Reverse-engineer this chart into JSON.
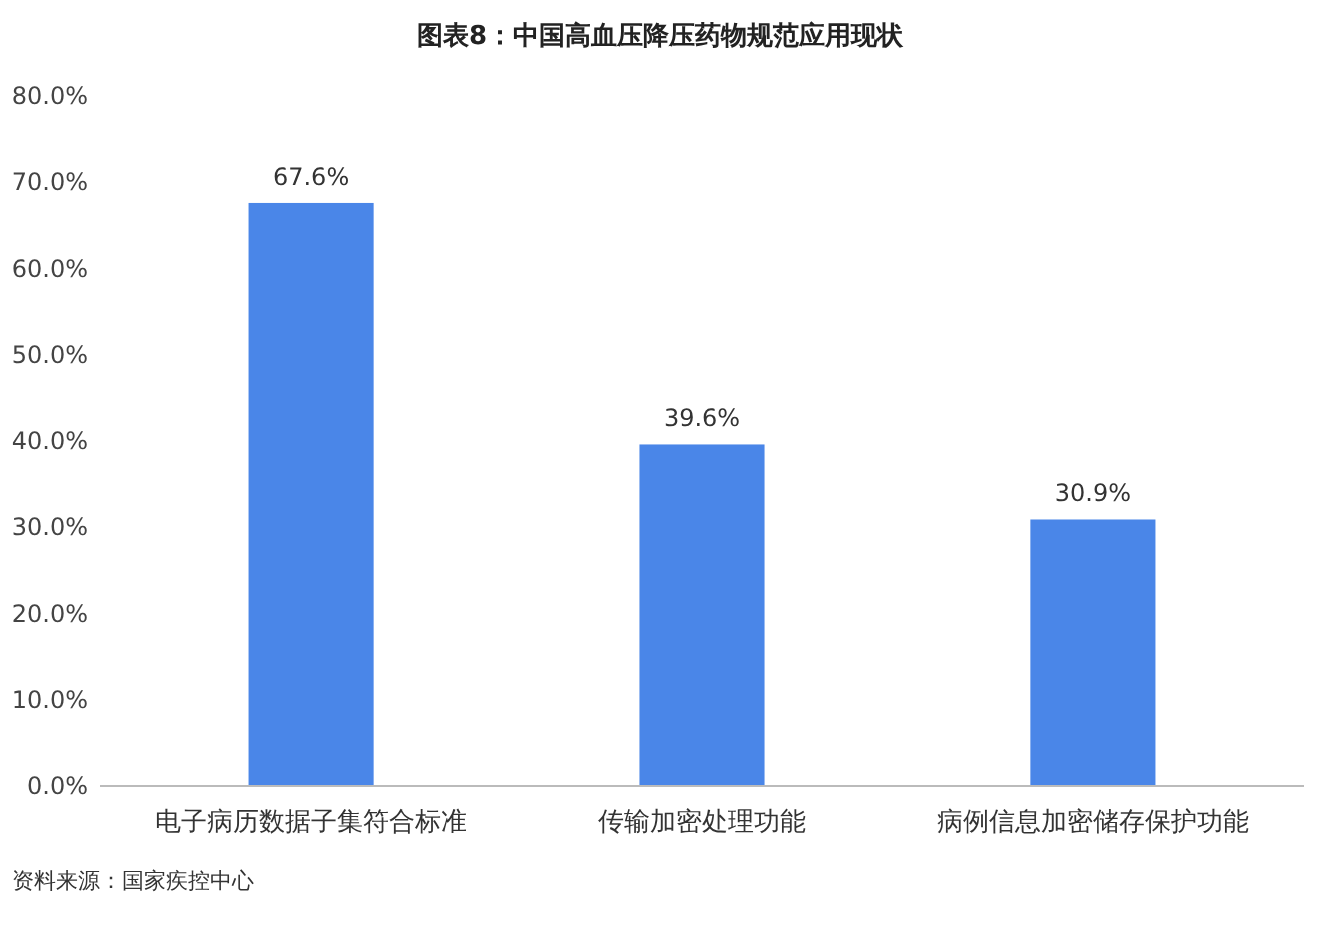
{
  "chart_data": {
    "type": "bar",
    "title": "图表8：中国高血压降压药物规范应用现状",
    "categories": [
      "电子病历数据子集符合标准",
      "传输加密处理功能",
      "病例信息加密储存保护功能"
    ],
    "values": [
      67.6,
      39.6,
      30.9
    ],
    "value_labels": [
      "67.6%",
      "39.6%",
      "30.9%"
    ],
    "color": "#4a86e8",
    "ylim": [
      0,
      80
    ],
    "yticks": [
      {
        "value": 0,
        "label": "0.0%"
      },
      {
        "value": 10,
        "label": "10.0%"
      },
      {
        "value": 20,
        "label": "20.0%"
      },
      {
        "value": 30,
        "label": "30.0%"
      },
      {
        "value": 40,
        "label": "40.0%"
      },
      {
        "value": 50,
        "label": "50.0%"
      },
      {
        "value": 60,
        "label": "60.0%"
      },
      {
        "value": 70,
        "label": "70.0%"
      },
      {
        "value": 80,
        "label": "80.0%"
      }
    ],
    "grid": false,
    "annotations": [
      "资料来源：国家疾控中心"
    ]
  }
}
